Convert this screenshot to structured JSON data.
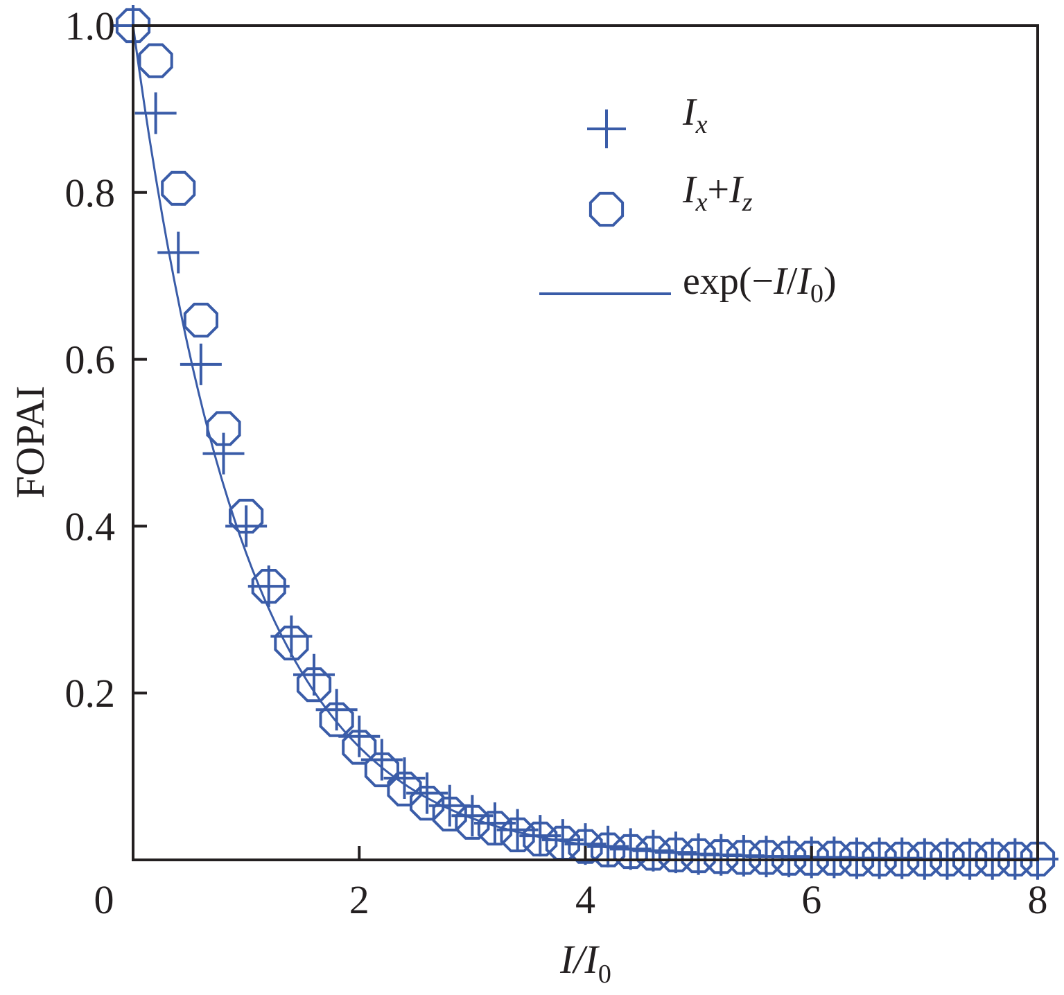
{
  "chart_data": {
    "type": "scatter",
    "xlabel": {
      "main": "I/I",
      "sub": "0"
    },
    "ylabel": "FOPAI",
    "xlim": [
      0,
      8
    ],
    "ylim": [
      0,
      1.0
    ],
    "x_ticks": [
      {
        "value": 0,
        "label": "0"
      },
      {
        "value": 2,
        "label": "2"
      },
      {
        "value": 4,
        "label": "4"
      },
      {
        "value": 6,
        "label": "6"
      },
      {
        "value": 8,
        "label": "8"
      }
    ],
    "y_ticks": [
      {
        "value": 0.2,
        "label": "0.2"
      },
      {
        "value": 0.4,
        "label": "0.4"
      },
      {
        "value": 0.6,
        "label": "0.6"
      },
      {
        "value": 0.8,
        "label": "0.8"
      },
      {
        "value": 1.0,
        "label": "1.0"
      }
    ],
    "grid": false,
    "legend_position": "top-right",
    "color": "#3a5ca8",
    "series": [
      {
        "name": "I_x",
        "legend": {
          "base": "I",
          "sub": "x"
        },
        "marker": "plus",
        "x": [
          0.0,
          0.2,
          0.4,
          0.6,
          0.8,
          1.0,
          1.2,
          1.4,
          1.6,
          1.8,
          2.0,
          2.2,
          2.4,
          2.6,
          2.8,
          3.0,
          3.2,
          3.4,
          3.6,
          3.8,
          4.0,
          4.2,
          4.4,
          4.6,
          4.8,
          5.0,
          5.2,
          5.4,
          5.6,
          5.8,
          6.0,
          6.2,
          6.4,
          6.6,
          6.8,
          7.0,
          7.2,
          7.4,
          7.6,
          7.8,
          8.0
        ],
        "y": [
          1.0,
          0.895,
          0.728,
          0.594,
          0.487,
          0.4,
          0.328,
          0.268,
          0.222,
          0.18,
          0.148,
          0.12,
          0.098,
          0.08,
          0.065,
          0.053,
          0.044,
          0.036,
          0.029,
          0.024,
          0.019,
          0.016,
          0.013,
          0.011,
          0.009,
          0.007,
          0.006,
          0.005,
          0.004,
          0.004,
          0.003,
          0.003,
          0.002,
          0.002,
          0.002,
          0.001,
          0.001,
          0.001,
          0.001,
          0.001,
          0.001
        ]
      },
      {
        "name": "I_x+I_z",
        "legend": {
          "base1": "I",
          "sub1": "x",
          "plus": "+",
          "base2": "I",
          "sub2": "z"
        },
        "marker": "circle",
        "x": [
          0.0,
          0.2,
          0.4,
          0.6,
          0.8,
          1.0,
          1.2,
          1.4,
          1.6,
          1.8,
          2.0,
          2.2,
          2.4,
          2.6,
          2.8,
          3.0,
          3.2,
          3.4,
          3.6,
          3.8,
          4.0,
          4.2,
          4.4,
          4.6,
          4.8,
          5.0,
          5.2,
          5.4,
          5.6,
          5.8,
          6.0,
          6.2,
          6.4,
          6.6,
          6.8,
          7.0,
          7.2,
          7.4,
          7.6,
          7.8,
          8.0
        ],
        "y": [
          1.0,
          0.958,
          0.805,
          0.647,
          0.517,
          0.412,
          0.328,
          0.26,
          0.21,
          0.168,
          0.135,
          0.108,
          0.085,
          0.068,
          0.055,
          0.045,
          0.038,
          0.03,
          0.025,
          0.02,
          0.016,
          0.012,
          0.01,
          0.008,
          0.006,
          0.005,
          0.004,
          0.003,
          0.003,
          0.002,
          0.002,
          0.002,
          0.001,
          0.001,
          0.001,
          0.001,
          0.001,
          0.001,
          0.001,
          0.001,
          0.001
        ]
      },
      {
        "name": "exp(−I/I_0)",
        "legend": {
          "pre": "exp(−",
          "base1": "I",
          "slash": "/",
          "base2": "I",
          "sub2": "0",
          "post": ")"
        },
        "marker": "line",
        "function": "exp(-x)",
        "x_range": [
          0,
          8
        ]
      }
    ]
  }
}
